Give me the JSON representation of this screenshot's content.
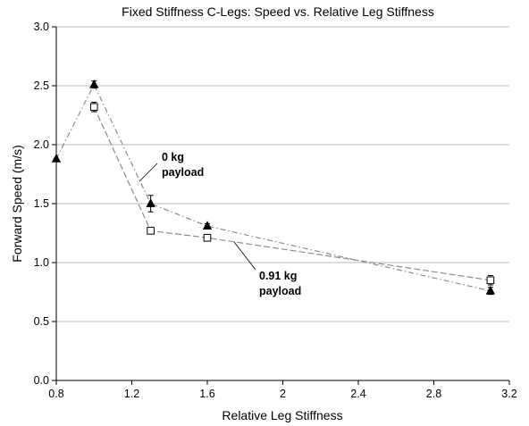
{
  "chart_data": {
    "type": "line",
    "title": "Fixed Stiffness C-Legs:  Speed vs. Relative Leg Stiffness",
    "xlabel": "Relative Leg Stiffness",
    "ylabel": "Forward Speed (m/s)",
    "xlim": [
      0.8,
      3.2
    ],
    "ylim": [
      0.0,
      3.0
    ],
    "xticks": [
      "0.8",
      "1.2",
      "1.6",
      "2",
      "2.4",
      "2.8",
      "3.2"
    ],
    "yticks": [
      "0.0",
      "0.5",
      "1.0",
      "1.5",
      "2.0",
      "2.5",
      "3.0"
    ],
    "grid": "horizontal",
    "series": [
      {
        "name_lines": [
          "0 kg",
          "payload"
        ],
        "marker": "filled-triangle",
        "line_style": "dash-dot",
        "x": [
          0.8,
          1.0,
          1.3,
          1.6,
          3.1
        ],
        "y": [
          1.88,
          2.51,
          1.5,
          1.31,
          0.76
        ],
        "err": [
          0.0,
          0.03,
          0.07,
          0.02,
          0.03
        ]
      },
      {
        "name_lines": [
          "0.91 kg",
          "payload"
        ],
        "marker": "open-square",
        "line_style": "dash",
        "x": [
          1.0,
          1.3,
          1.6,
          3.1
        ],
        "y": [
          2.32,
          1.27,
          1.21,
          0.85
        ],
        "err": [
          0.04,
          0.0,
          0.02,
          0.04
        ]
      }
    ]
  },
  "colors": {
    "line": "#8c8c8c",
    "grid": "#b8b8b8",
    "axis": "#000000",
    "marker": "#000000"
  }
}
